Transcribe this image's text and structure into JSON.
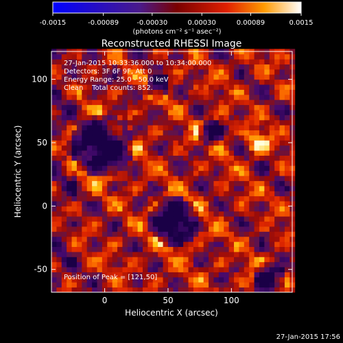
{
  "chart_data": {
    "type": "heatmap",
    "title": "Reconstructed RHESSI Image",
    "xlabel": "Heliocentric X (arcsec)",
    "ylabel": "Heliocentric Y (arcsec)",
    "xlim": [
      -42,
      148
    ],
    "ylim": [
      -68,
      122
    ],
    "x_ticks": [
      0,
      50,
      100
    ],
    "y_ticks": [
      -50,
      0,
      50,
      100
    ],
    "colorbar": {
      "min": -0.0015,
      "max": 0.0015,
      "tick_values": [
        -0.0015,
        -0.00089,
        -0.0003,
        0.0003,
        0.00089,
        0.0015
      ],
      "tick_labels": [
        "-0.0015",
        "-0.00089",
        "-0.00030",
        "0.00030",
        "0.00089",
        "0.0015"
      ],
      "unit_label": "(photons cm⁻² s⁻¹ asec⁻²)",
      "colors": [
        "#0000ff",
        "#3a1a6e",
        "#7a1a1a",
        "#e02000",
        "#ff9a00",
        "#ffffff"
      ]
    },
    "info_lines": [
      "27-Jan-2015 10:33:36.000 to 10:34:00.000",
      "Detectors: 3F 6F 9F, Att 0",
      "Energy Range: 25.0 - 50.0 keV",
      "Clean    Total counts: 852."
    ],
    "peak_label": "Position of Peak = [121,50]",
    "peak": {
      "x": 121,
      "y": 50
    },
    "holes": [
      {
        "x": -2,
        "y": 48,
        "r": 26
      },
      {
        "x": 55,
        "y": -12,
        "r": 20
      },
      {
        "x": 130,
        "y": -58,
        "r": 14
      },
      {
        "x": 83,
        "y": 58,
        "r": 10
      },
      {
        "x": 42,
        "y": 95,
        "r": 10
      }
    ],
    "pixel_size_arcsec": 4
  },
  "footer_timestamp": "27-Jan-2015 17:56"
}
